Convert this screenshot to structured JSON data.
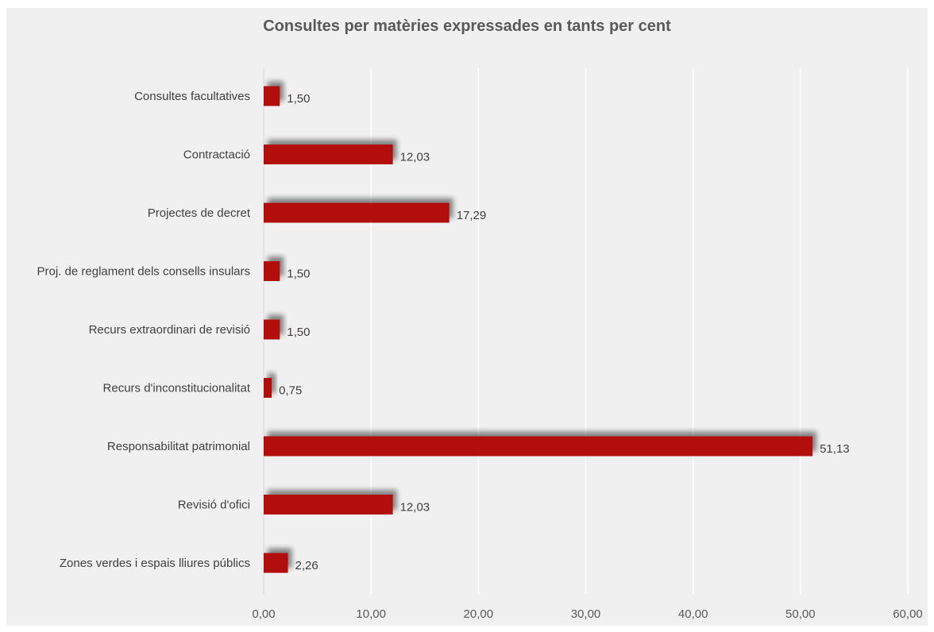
{
  "chart_data": {
    "type": "bar",
    "orientation": "horizontal",
    "title": "Consultes per matèries expressades en tants per cent",
    "xlabel": "",
    "ylabel": "",
    "categories": [
      "Consultes facultatives",
      "Contractació",
      "Projectes de decret",
      "Proj. de reglament dels consells insulars",
      "Recurs extraordinari de revisió",
      "Recurs d'inconstitucionalitat",
      "Responsabilitat patrimonial",
      "Revisió d'ofici",
      "Zones verdes i espais lliures públics"
    ],
    "values": [
      1.5,
      12.03,
      17.29,
      1.5,
      1.5,
      0.75,
      51.13,
      12.03,
      2.26
    ],
    "value_labels": [
      "1,50",
      "12,03",
      "17,29",
      "1,50",
      "1,50",
      "0,75",
      "51,13",
      "12,03",
      "2,26"
    ],
    "xlim": [
      0,
      60
    ],
    "ticks": [
      0,
      10,
      20,
      30,
      40,
      50,
      60
    ],
    "tick_labels": [
      "0,00",
      "10,00",
      "20,00",
      "30,00",
      "40,00",
      "50,00",
      "60,00"
    ],
    "grid": true,
    "legend": "none",
    "colors": {
      "bar": "#b20f0c",
      "background": "#f0f0f0",
      "grid": "#ffffff",
      "title": "#595959",
      "text": "#404040"
    }
  }
}
